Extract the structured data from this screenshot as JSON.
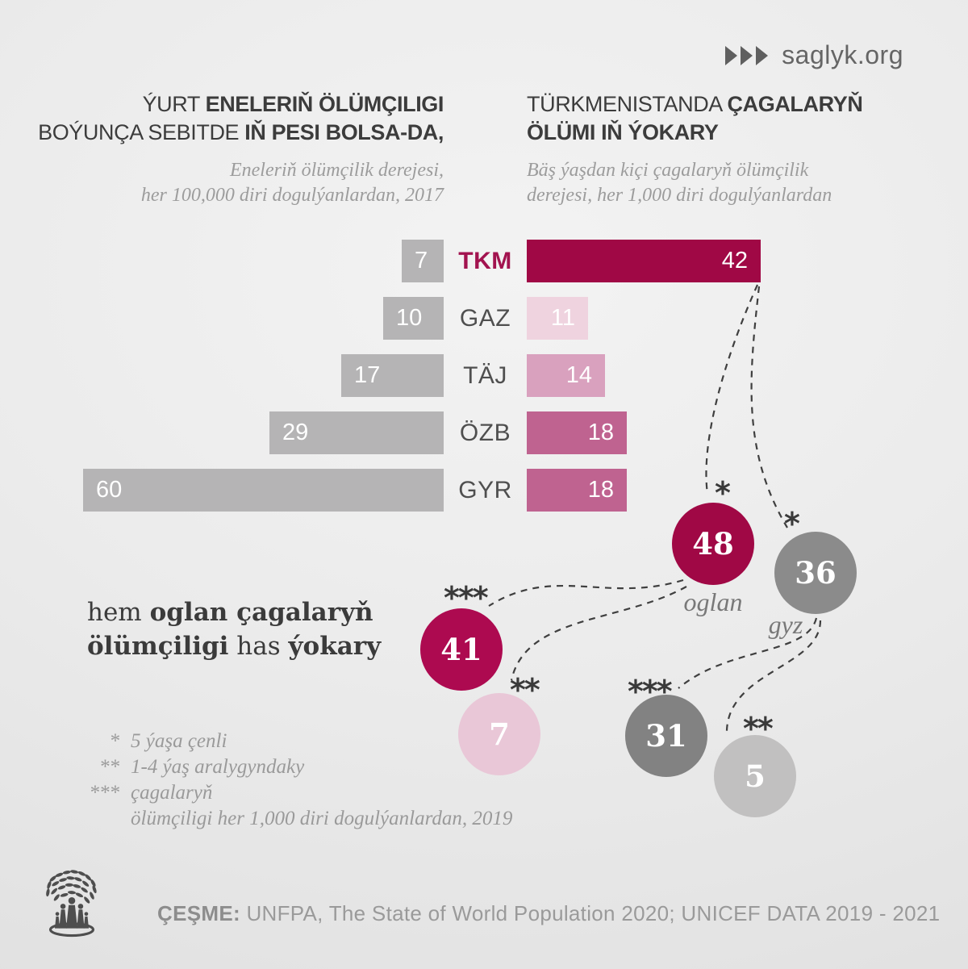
{
  "brand": {
    "site": "saglyk.org"
  },
  "left_panel": {
    "title_regular_1": "ÝURT ",
    "title_bold_1": "ENELERIŇ ÖLÜMÇILIGI",
    "title_regular_2": "BOÝUNÇA SEBITDE ",
    "title_bold_2": "IŇ PESI BOLSA-DA,",
    "subtitle_line1": "Eneleriň ölümçilik derejesi,",
    "subtitle_line2": "her 100,000 diri dogulýanlardan, 2017"
  },
  "right_panel": {
    "title_regular_1": "TÜRKMENISTANDA ",
    "title_bold_1": "ÇAGALARYŇ",
    "title_bold_2": "ÖLÜMI IŇ ÝOKARY",
    "subtitle_line1": "Bäş ýaşdan kiçi çagalaryň ölümçilik",
    "subtitle_line2": "derejesi, her 1,000 diri dogulýanlardan"
  },
  "side_note": {
    "regular_1": "hem ",
    "bold_1": "oglan çagalaryň",
    "bold_2": "ölümçiligi",
    "regular_2": " has ",
    "bold_3": "ýokary"
  },
  "legend": {
    "items": [
      {
        "marker": "*",
        "text": "5 ýaşa çenli"
      },
      {
        "marker": "**",
        "text": "1-4 ýaş aralygyndaky"
      },
      {
        "marker": "***",
        "text": "çagalaryň"
      },
      {
        "marker": "",
        "text": "ölümçiligi her 1,000 diri dogulýanlardan, 2019"
      }
    ]
  },
  "footer": {
    "source_label": "ÇEŞME:",
    "source_text": " UNFPA, The State of World Population 2020; UNICEF DATA 2019 - 2021"
  },
  "colors": {
    "accent_maroon": "#a00845",
    "pink_light": "#efd3df",
    "pink_medium": "#d9a1be",
    "pink_dark": "#bf6390",
    "gray_bar": "#b5b4b5"
  },
  "chart_data": [
    {
      "type": "bar",
      "title": "Eneleriň ölümçilik derejesi, her 100,000 diri dogulýanlardan, 2017",
      "orientation": "horizontal, bars grow right-to-left toward center",
      "categories": [
        "TKM",
        "GAZ",
        "TÄJ",
        "ÖZB",
        "GYR"
      ],
      "values": [
        7,
        10,
        17,
        29,
        60
      ],
      "bar_colors": [
        "#b5b4b5",
        "#b5b4b5",
        "#b5b4b5",
        "#b5b4b5",
        "#b5b4b5"
      ],
      "highlight_category": "TKM"
    },
    {
      "type": "bar",
      "title": "Bäş ýaşdan kiçi çagalaryň ölümçilik derejesi, her 1,000 diri dogulýanlardan",
      "orientation": "horizontal, bars grow left-to-right from center",
      "categories": [
        "TKM",
        "GAZ",
        "TÄJ",
        "ÖZB",
        "GYR"
      ],
      "values": [
        42,
        11,
        14,
        18,
        18
      ],
      "bar_colors": [
        "#a00845",
        "#efd3df",
        "#d9a1be",
        "#bf6390",
        "#bf6390"
      ]
    },
    {
      "type": "bubbles",
      "title": "çagalaryň ölümçiligi her 1,000 diri dogulýanlardan, 2019",
      "points": [
        {
          "value": 48,
          "note": "*",
          "label": "oglan",
          "color": "#a00845"
        },
        {
          "value": 36,
          "note": "*",
          "label": "gyz",
          "color": "#8b8b8b"
        },
        {
          "value": 41,
          "note": "***",
          "label": "",
          "color": "#ad0a50"
        },
        {
          "value": 7,
          "note": "**",
          "label": "",
          "color": "#e9c7d7"
        },
        {
          "value": 31,
          "note": "***",
          "label": "",
          "color": "#828282"
        },
        {
          "value": 5,
          "note": "**",
          "label": "",
          "color": "#c1c0c0"
        }
      ]
    }
  ]
}
